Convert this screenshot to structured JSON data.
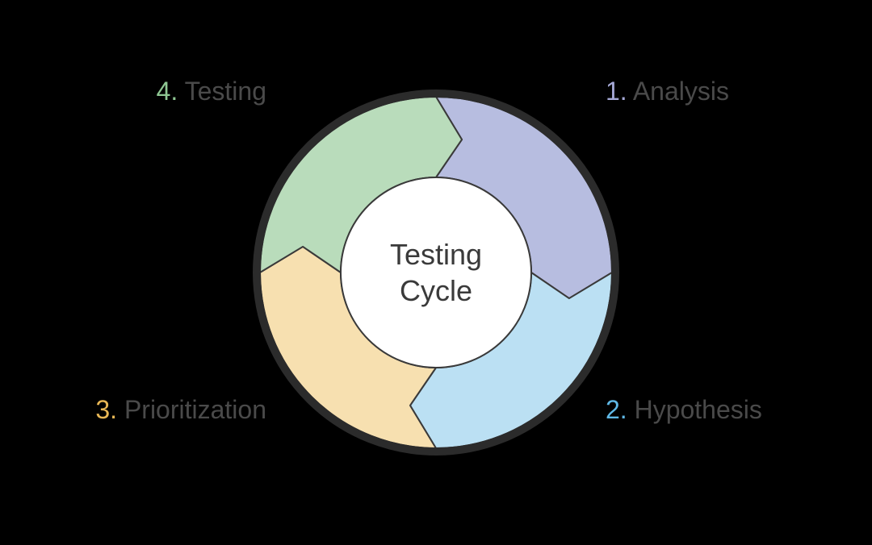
{
  "diagram": {
    "type": "cycle",
    "center_label_line1": "Testing",
    "center_label_line2": "Cycle",
    "center_text_color": "#3a3a3a",
    "center_fontsize": 36,
    "label_fontsize": 32,
    "label_text_color": "#4a4a4a",
    "background_color": "#000000",
    "outer_radius": 218,
    "inner_radius": 118,
    "ring_stroke_color": "#2b2b2b",
    "ring_stroke_width": 10,
    "segment_stroke_color": "#3a3a3a",
    "segment_stroke_width": 2,
    "inner_fill": "#ffffff",
    "segments": [
      {
        "num": "1.",
        "label": "Analysis",
        "fill": "#b7bde0",
        "num_color": "#a5a8d6",
        "angle_start": -90,
        "angle_end": 0
      },
      {
        "num": "2.",
        "label": "Hypothesis",
        "fill": "#bbe0f3",
        "num_color": "#5fb8e6",
        "angle_start": 0,
        "angle_end": 90
      },
      {
        "num": "3.",
        "label": "Prioritization",
        "fill": "#f7e0b0",
        "num_color": "#e8b755",
        "angle_start": 90,
        "angle_end": 180
      },
      {
        "num": "4.",
        "label": "Testing",
        "fill": "#b9dcbb",
        "num_color": "#8fc793",
        "angle_start": 180,
        "angle_end": 270
      }
    ],
    "arrow_notch_deg": 11
  }
}
